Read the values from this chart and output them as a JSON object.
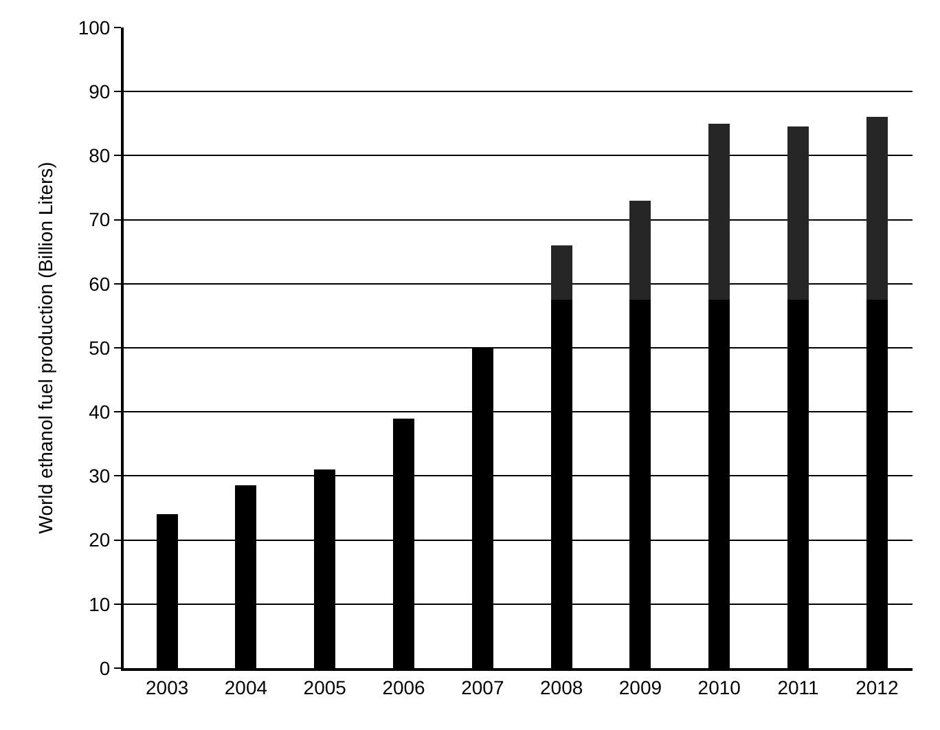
{
  "chart_data": {
    "type": "bar",
    "ylabel": "World ethanol fuel production (Billion Liters)",
    "categories": [
      "2003",
      "2004",
      "2005",
      "2006",
      "2007",
      "2008",
      "2009",
      "2010",
      "2011",
      "2012"
    ],
    "stacked": true,
    "series": [
      {
        "color": "#000000",
        "values": [
          24,
          28.5,
          31,
          39,
          50,
          57.5,
          57.5,
          57.5,
          57.5,
          57.5
        ]
      },
      {
        "color": "#262626",
        "values": [
          null,
          null,
          null,
          null,
          null,
          8.5,
          15.5,
          27.5,
          27,
          28.5
        ]
      }
    ],
    "ylim": [
      0,
      100
    ],
    "yticks": [
      0,
      10,
      20,
      30,
      40,
      50,
      60,
      70,
      80,
      90,
      100
    ],
    "grid": "y"
  }
}
